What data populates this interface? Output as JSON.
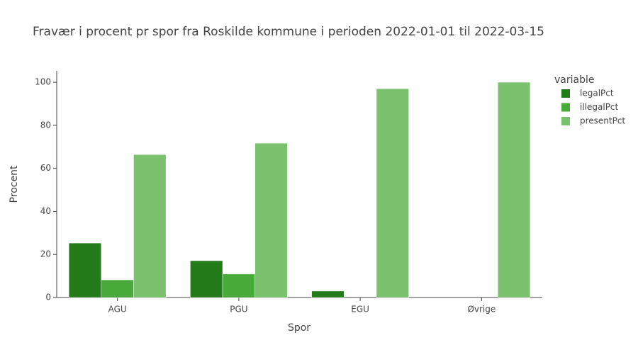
{
  "chart_data": {
    "type": "bar",
    "title": "Fravær i procent pr spor fra Roskilde kommune i perioden 2022-01-01 til 2022-03-15",
    "x_label": "Spor",
    "y_label": "Procent",
    "legend_title": "variable",
    "categories": [
      "AGU",
      "PGU",
      "EGU",
      "Øvrige"
    ],
    "series": [
      {
        "name": "legalPct",
        "color": "#237c19",
        "values": [
          25.3,
          17.1,
          3.0,
          0
        ]
      },
      {
        "name": "illegalPct",
        "color": "#48aa38",
        "values": [
          8.2,
          10.9,
          0,
          0
        ]
      },
      {
        "name": "presentPct",
        "color": "#7bc26e",
        "values": [
          66.4,
          71.7,
          97.0,
          100
        ]
      }
    ],
    "ylim": [
      0,
      105.3
    ],
    "yticks": [
      0,
      20,
      40,
      60,
      80,
      100
    ],
    "legend": "right"
  }
}
